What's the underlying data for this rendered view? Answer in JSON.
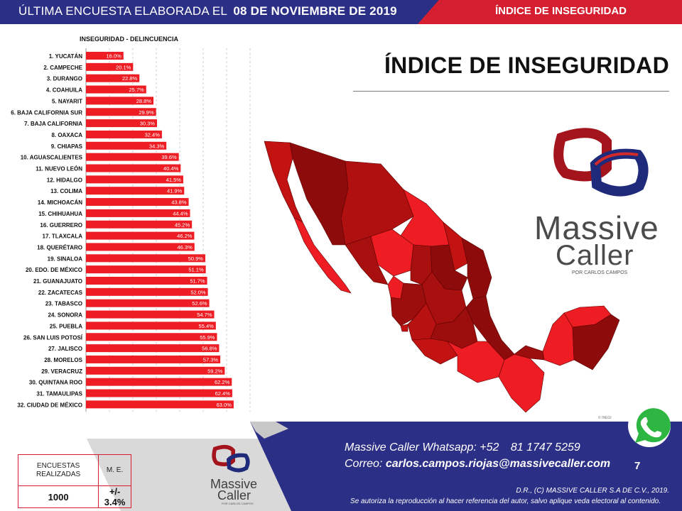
{
  "header": {
    "prefix": "ÚLTIMA ENCUESTA ELABORADA EL",
    "date": "08 DE NOVIEMBRE DE 2019",
    "section": "ÍNDICE DE INSEGURIDAD"
  },
  "main_title": "ÍNDICE DE INSEGURIDAD",
  "colors": {
    "navy": "#2c2f86",
    "red": "#d51f30",
    "bar": "#ee1d24",
    "map_dark": "#8e0b0b",
    "map_mid": "#c21212",
    "map_light": "#ee1d24"
  },
  "chart_data": {
    "type": "bar",
    "orientation": "horizontal",
    "title": "INSEGURIDAD - DELINCUENCIA",
    "categories": [
      "1. YUCATÁN",
      "2. CAMPECHE",
      "3. DURANGO",
      "4. COAHUILA",
      "5. NAYARIT",
      "6. BAJA CALIFORNIA SUR",
      "7. BAJA CALIFORNIA",
      "8. OAXACA",
      "9. CHIAPAS",
      "10. AGUASCALIENTES",
      "11. NUEVO LEÓN",
      "12. HIDALGO",
      "13. COLIMA",
      "14. MICHOACÁN",
      "15. CHIHUAHUA",
      "16. GUERRERO",
      "17. TLAXCALA",
      "18. QUERÉTARO",
      "19. SINALOA",
      "20. EDO. DE MÉXICO",
      "21. GUANAJUATO",
      "22. ZACATECAS",
      "23. TABASCO",
      "24. SONORA",
      "25. PUEBLA",
      "26. SAN LUIS POTOSÍ",
      "27. JALISCO",
      "28. MORELOS",
      "29. VERACRUZ",
      "30. QUINTANA ROO",
      "31. TAMAULIPAS",
      "32. CIUDAD DE MÉXICO"
    ],
    "values": [
      16.0,
      20.1,
      22.8,
      25.7,
      28.8,
      29.9,
      30.3,
      32.4,
      34.3,
      39.6,
      40.4,
      41.5,
      41.9,
      43.8,
      44.4,
      45.2,
      46.2,
      46.3,
      50.9,
      51.1,
      51.7,
      52.0,
      52.6,
      54.7,
      55.4,
      55.9,
      56.8,
      57.3,
      59.2,
      62.2,
      62.4,
      63.0
    ],
    "labels": [
      "16.0%",
      "20.1%",
      "22.8%",
      "25.7%",
      "28.8%",
      "29.9%",
      "30.3%",
      "32.4%",
      "34.3%",
      "39.6%",
      "40.4%",
      "41.5%",
      "41.9%",
      "43.8%",
      "44.4%",
      "45.2%",
      "46.2%",
      "46.3%",
      "50.9%",
      "51.1%",
      "51.7%",
      "52.0%",
      "52.6%",
      "54.7%",
      "55.4%",
      "55.9%",
      "56.8%",
      "57.3%",
      "59.2%",
      "62.2%",
      "62.4%",
      "63.0%"
    ],
    "xlim": [
      0,
      70
    ],
    "grid": true,
    "gridline_style": "dashed vertical",
    "bar_color": "#ee1d24"
  },
  "logo": {
    "word1": "Massive",
    "word2": "Caller",
    "sub": "POR CARLOS CAMPOS"
  },
  "map_credit": "© INEGI",
  "stats": {
    "col1_header": "ENCUESTAS REALIZADAS",
    "col2_header": "M. E.",
    "col1_value": "1000",
    "col2_value": "+/- 3.4%"
  },
  "footer": {
    "logo_word1": "Massive",
    "logo_word2": "Caller",
    "logo_sub": "POR CARLOS CAMPOS",
    "whatsapp_label": "Massive Caller Whatsapp: +52",
    "whatsapp_number": "81 1747 5259",
    "mail_label": "Correo:",
    "mail": "carlos.campos.riojas@massivecaller.com",
    "page": "7",
    "rights1": "D.R., (C) MASSIVE CALLER S.A DE C.V., 2019.",
    "rights2": "Se autoriza la reproducción al hacer referencia del autor, salvo aplique veda electoral al contenido."
  },
  "icons": {
    "whatsapp": "whatsapp-icon",
    "logo_mark": "massive-caller-logo-icon"
  }
}
